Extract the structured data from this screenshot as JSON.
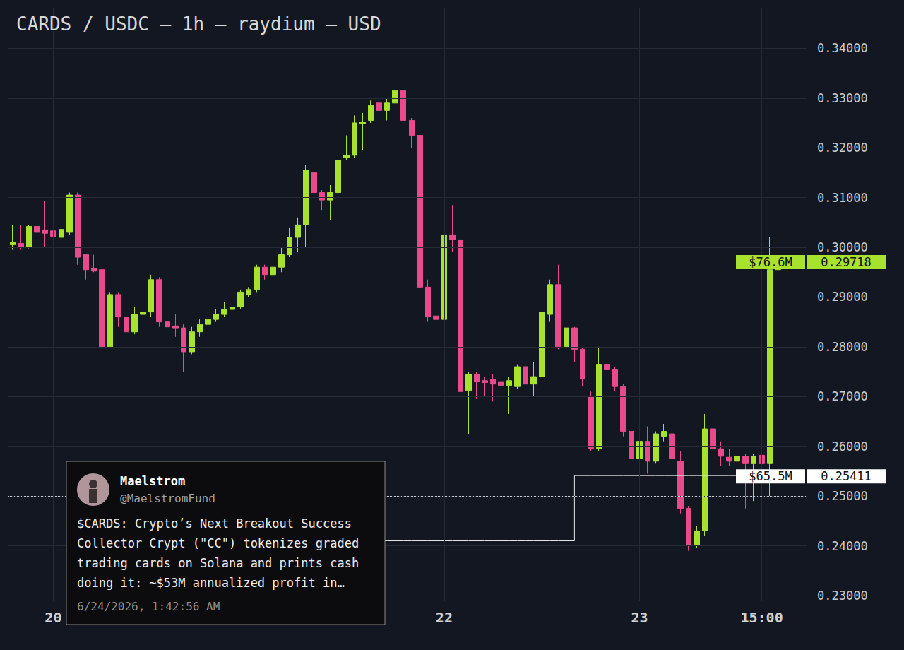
{
  "chart_data": {
    "type": "candlestick",
    "title": "CARDS / USDC — 1h — raydium — USD",
    "categories": [
      null,
      null,
      null,
      null,
      null,
      "20",
      null,
      null,
      null,
      null,
      null,
      null,
      null,
      null,
      null,
      null,
      null,
      null,
      null,
      null,
      null,
      null,
      null,
      null,
      null,
      null,
      null,
      null,
      null,
      null,
      null,
      null,
      null,
      null,
      null,
      null,
      null,
      null,
      null,
      null,
      null,
      null,
      null,
      null,
      null,
      null,
      null,
      null,
      null,
      null,
      null,
      null,
      null,
      "22",
      null,
      null,
      null,
      null,
      null,
      null,
      null,
      null,
      null,
      null,
      null,
      null,
      null,
      null,
      null,
      null,
      null,
      null,
      null,
      null,
      null,
      null,
      null,
      "23",
      null,
      null,
      null,
      null,
      null,
      null,
      null,
      null,
      null,
      null,
      null,
      null,
      null,
      null,
      "15:00",
      null,
      null,
      null,
      null,
      null
    ],
    "series": [
      {
        "type": "candlestick",
        "open": [
          0.3005,
          0.3008,
          0.3,
          0.3042,
          0.3035,
          0.3033,
          0.302,
          0.303,
          0.3105,
          0.2985,
          0.2958,
          0.2955,
          0.28,
          0.2905,
          0.286,
          0.283,
          0.2865,
          0.287,
          0.2935,
          0.285,
          0.2842,
          0.2838,
          0.279,
          0.283,
          0.2845,
          0.2855,
          0.2865,
          0.2875,
          0.288,
          0.2905,
          0.2915,
          0.296,
          0.2945,
          0.296,
          0.2985,
          0.302,
          0.3045,
          0.315,
          0.311,
          0.3095,
          0.311,
          0.318,
          0.3185,
          0.3248,
          0.3255,
          0.329,
          0.3275,
          0.329,
          0.3315,
          0.3255,
          0.3225,
          0.292,
          0.2862,
          0.2855,
          0.3025,
          0.3015,
          0.2712,
          0.2745,
          0.2732,
          0.2735,
          0.273,
          0.2722,
          0.272,
          0.276,
          0.2725,
          0.274,
          0.2865,
          0.2925,
          0.28,
          0.2838,
          0.2795,
          0.27,
          0.2595,
          0.2765,
          0.2755,
          0.272,
          0.263,
          0.2575,
          0.261,
          0.257,
          0.262,
          0.2625,
          0.257,
          0.2475,
          0.2402,
          0.243,
          0.2635,
          0.2595,
          0.2578,
          0.257,
          0.258,
          0.2565,
          0.2582,
          0.2565,
          0.2955,
          null,
          null,
          null
        ],
        "close": [
          0.301,
          0.3,
          0.3042,
          0.303,
          0.3028,
          0.3022,
          0.3036,
          0.3105,
          0.298,
          0.2955,
          0.2952,
          0.28,
          0.2905,
          0.286,
          0.283,
          0.2865,
          0.287,
          0.2935,
          0.285,
          0.284,
          0.2838,
          0.279,
          0.283,
          0.2845,
          0.2855,
          0.2865,
          0.2875,
          0.288,
          0.291,
          0.2915,
          0.296,
          0.2945,
          0.296,
          0.2985,
          0.302,
          0.3045,
          0.3155,
          0.311,
          0.3095,
          0.311,
          0.3175,
          0.3185,
          0.325,
          0.3252,
          0.3285,
          0.3275,
          0.329,
          0.3315,
          0.3255,
          0.3225,
          0.292,
          0.286,
          0.2855,
          0.3025,
          0.3015,
          0.271,
          0.2745,
          0.273,
          0.2728,
          0.2725,
          0.2722,
          0.2732,
          0.276,
          0.2725,
          0.274,
          0.287,
          0.2925,
          0.28,
          0.2838,
          0.2795,
          0.2735,
          0.2595,
          0.2765,
          0.2755,
          0.272,
          0.263,
          0.2575,
          0.261,
          0.257,
          0.2625,
          0.263,
          0.2575,
          0.2475,
          0.24,
          0.243,
          0.2635,
          0.2595,
          0.258,
          0.257,
          0.258,
          0.2565,
          0.258,
          0.2565,
          0.2955,
          0.29718,
          null,
          null,
          null
        ],
        "low": [
          0.2995,
          0.2995,
          0.2998,
          0.3015,
          0.3,
          0.301,
          0.3,
          0.3025,
          0.2965,
          0.2935,
          0.295,
          0.269,
          0.28,
          0.284,
          0.2805,
          0.2825,
          0.2855,
          0.286,
          0.284,
          0.283,
          0.282,
          0.275,
          0.2785,
          0.282,
          0.2835,
          0.285,
          0.286,
          0.287,
          0.2875,
          0.29,
          0.291,
          0.2935,
          0.294,
          0.295,
          0.298,
          0.299,
          0.3,
          0.31,
          0.3075,
          0.3055,
          0.3105,
          0.3175,
          0.318,
          0.3195,
          0.325,
          0.326,
          0.3255,
          0.3275,
          0.324,
          0.32,
          0.2915,
          0.285,
          0.2835,
          0.2815,
          0.299,
          0.2665,
          0.2625,
          0.2695,
          0.27,
          0.269,
          0.2695,
          0.2665,
          0.2715,
          0.27,
          0.27,
          0.2725,
          0.285,
          0.2795,
          0.2795,
          0.277,
          0.272,
          0.259,
          0.259,
          0.274,
          0.271,
          0.262,
          0.253,
          0.256,
          0.2545,
          0.2565,
          0.261,
          0.256,
          0.2465,
          0.239,
          0.2395,
          0.242,
          0.259,
          0.256,
          0.256,
          0.256,
          0.2475,
          0.249,
          0.25,
          0.25,
          0.2865,
          null,
          null,
          null
        ],
        "high": [
          0.3045,
          0.3045,
          0.3045,
          0.3045,
          0.3093,
          0.3045,
          0.3075,
          0.311,
          0.311,
          0.2985,
          0.2985,
          0.296,
          0.291,
          0.291,
          0.287,
          0.288,
          0.2885,
          0.2945,
          0.294,
          0.288,
          0.2865,
          0.2845,
          0.284,
          0.2855,
          0.2865,
          0.2875,
          0.289,
          0.2895,
          0.2915,
          0.292,
          0.2965,
          0.2965,
          0.2965,
          0.3,
          0.304,
          0.306,
          0.3165,
          0.316,
          0.3115,
          0.3125,
          0.318,
          0.3225,
          0.3265,
          0.327,
          0.3295,
          0.3295,
          0.33,
          0.334,
          0.334,
          0.326,
          0.3225,
          0.2935,
          0.287,
          0.304,
          0.3085,
          0.3025,
          0.275,
          0.275,
          0.274,
          0.2745,
          0.274,
          0.274,
          0.2765,
          0.2765,
          0.277,
          0.2875,
          0.2935,
          0.2965,
          0.284,
          0.284,
          0.28,
          0.271,
          0.28,
          0.279,
          0.276,
          0.2725,
          0.2635,
          0.2615,
          0.264,
          0.263,
          0.2645,
          0.263,
          0.259,
          0.248,
          0.244,
          0.2665,
          0.264,
          0.261,
          0.2595,
          0.2605,
          0.2585,
          0.2585,
          0.2585,
          0.302,
          0.3032,
          null,
          null,
          null
        ],
        "colors": [
          "#a6e22e",
          "#e84a8c",
          "#a6e22e",
          "#e84a8c",
          "#e84a8c",
          "#e84a8c",
          "#a6e22e",
          "#a6e22e",
          "#e84a8c",
          "#e84a8c",
          "#e84a8c",
          "#e84a8c",
          "#a6e22e",
          "#e84a8c",
          "#e84a8c",
          "#a6e22e",
          "#a6e22e",
          "#a6e22e",
          "#e84a8c",
          "#e84a8c",
          "#e84a8c",
          "#e84a8c",
          "#a6e22e",
          "#a6e22e",
          "#a6e22e",
          "#a6e22e",
          "#a6e22e",
          "#a6e22e",
          "#a6e22e",
          "#a6e22e",
          "#a6e22e",
          "#e84a8c",
          "#a6e22e",
          "#a6e22e",
          "#a6e22e",
          "#a6e22e",
          "#a6e22e",
          "#e84a8c",
          "#e84a8c",
          "#a6e22e",
          "#a6e22e",
          "#a6e22e",
          "#a6e22e",
          "#a6e22e",
          "#a6e22e",
          "#e84a8c",
          "#a6e22e",
          "#a6e22e",
          "#e84a8c",
          "#e84a8c",
          "#e84a8c",
          "#e84a8c",
          "#e84a8c",
          "#a6e22e",
          "#e84a8c",
          "#e84a8c",
          "#a6e22e",
          "#e84a8c",
          "#e84a8c",
          "#e84a8c",
          "#e84a8c",
          "#a6e22e",
          "#a6e22e",
          "#e84a8c",
          "#a6e22e",
          "#a6e22e",
          "#a6e22e",
          "#e84a8c",
          "#a6e22e",
          "#e84a8c",
          "#e84a8c",
          "#e84a8c",
          "#a6e22e",
          "#e84a8c",
          "#e84a8c",
          "#e84a8c",
          "#e84a8c",
          "#a6e22e",
          "#e84a8c",
          "#a6e22e",
          "#a6e22e",
          "#e84a8c",
          "#e84a8c",
          "#e84a8c",
          "#a6e22e",
          "#a6e22e",
          "#e84a8c",
          "#e84a8c",
          "#e84a8c",
          "#a6e22e",
          "#e84a8c",
          "#a6e22e",
          "#e84a8c",
          "#a6e22e",
          "#a6e22e",
          null,
          null,
          null
        ]
      },
      {
        "type": "line",
        "line_style": "step",
        "color": "#e6e6e6",
        "values": [
          null,
          null,
          null,
          null,
          null,
          null,
          null,
          null,
          null,
          null,
          null,
          null,
          null,
          null,
          null,
          null,
          null,
          null,
          null,
          null,
          null,
          null,
          null,
          null,
          null,
          null,
          null,
          null,
          null,
          null,
          null,
          null,
          null,
          null,
          null,
          null,
          null,
          null,
          null,
          null,
          0.241,
          0.241,
          0.241,
          0.241,
          0.241,
          0.241,
          0.241,
          0.241,
          0.241,
          0.241,
          0.241,
          0.241,
          0.241,
          0.241,
          0.241,
          0.241,
          0.241,
          0.241,
          0.241,
          0.241,
          0.241,
          0.241,
          0.241,
          0.241,
          0.241,
          0.241,
          0.241,
          0.241,
          0.241,
          0.25411,
          0.25411,
          0.25411,
          0.25411,
          0.25411,
          0.25411,
          0.25411,
          0.25411,
          0.25411,
          0.25411,
          0.25411,
          0.25411,
          0.25411,
          0.25411,
          0.25411,
          0.25411,
          0.25411,
          0.25411,
          0.25411,
          0.25411,
          0.25411,
          0.25411,
          0.25411,
          0.25411,
          0.25411,
          0.25411,
          null,
          null,
          null
        ]
      }
    ],
    "ylim": [
      0.229,
      0.348
    ],
    "yticks": [
      {
        "value": 0.23,
        "label": "0.23000"
      },
      {
        "value": 0.24,
        "label": "0.24000"
      },
      {
        "value": 0.25,
        "label": "0.25000"
      },
      {
        "value": 0.26,
        "label": "0.26000"
      },
      {
        "value": 0.27,
        "label": "0.27000"
      },
      {
        "value": 0.28,
        "label": "0.28000"
      },
      {
        "value": 0.29,
        "label": "0.29000"
      },
      {
        "value": 0.3,
        "label": "0.30000"
      },
      {
        "value": 0.31,
        "label": "0.31000"
      },
      {
        "value": 0.32,
        "label": "0.32000"
      },
      {
        "value": 0.33,
        "label": "0.33000"
      },
      {
        "value": 0.34,
        "label": "0.34000"
      }
    ],
    "grid": true,
    "annotations": [
      {
        "text": "$76.6M",
        "value": 0.29718,
        "color": "#a6e22e"
      },
      {
        "text": "$65.5M",
        "value": 0.25411,
        "color": "#ffffff",
        "line_style": "dotted"
      }
    ],
    "tweet": {
      "name": "Maelstrom",
      "handle": "@MaelstromFund",
      "lines": [
        "$CARDS: Crypto’s Next Breakout Success",
        "Collector Crypt (\"CC\") tokenizes graded",
        "trading cards on Solana and prints cash",
        "doing it: ~$53M annualized profit in…"
      ],
      "date": "6/24/2026, 1:42:56 AM"
    }
  }
}
